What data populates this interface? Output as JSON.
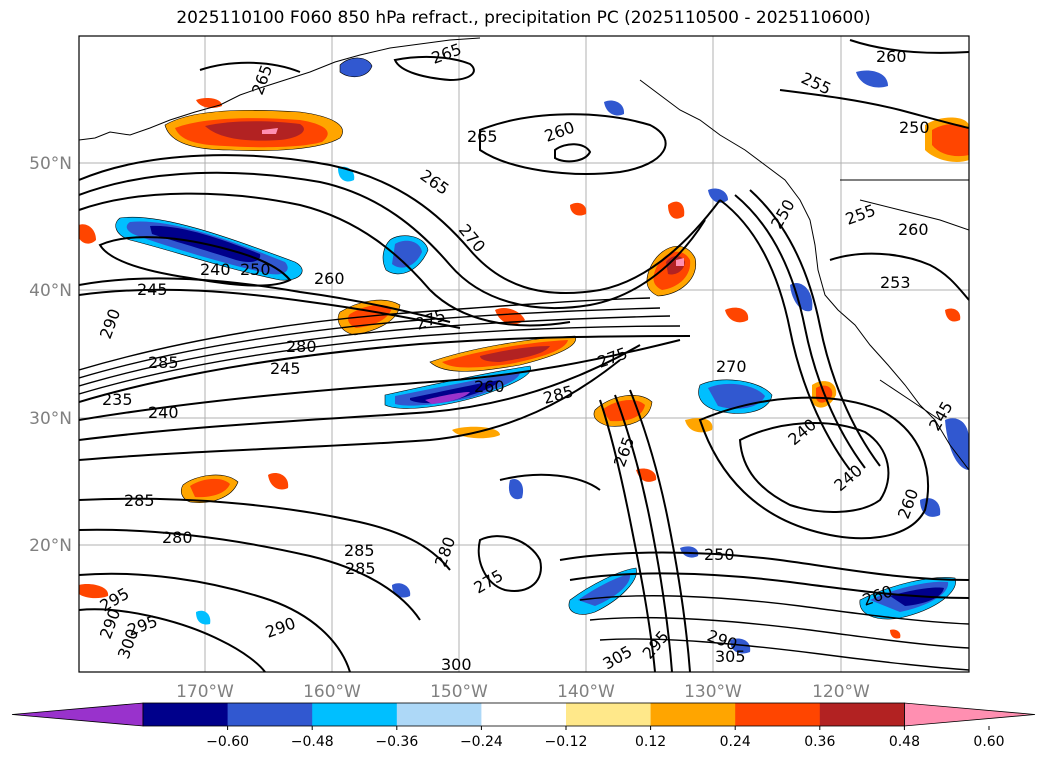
{
  "title": "2025110100 F060 850 hPa refract., precipitation PC (2025110500 - 2025110600)",
  "map": {
    "lat_labels": [
      "50°N",
      "40°N",
      "30°N",
      "20°N"
    ],
    "lon_labels": [
      "170°W",
      "160°W",
      "150°W",
      "140°W",
      "130°W",
      "120°W"
    ]
  },
  "contour_labels": [
    "265",
    "265",
    "265",
    "260",
    "260",
    "255",
    "250",
    "265",
    "270",
    "275",
    "275",
    "285",
    "290",
    "240",
    "245",
    "250",
    "260",
    "280",
    "260",
    "285",
    "240",
    "235",
    "245",
    "285",
    "280",
    "285",
    "285",
    "280",
    "275",
    "265",
    "270",
    "250",
    "240",
    "240",
    "255",
    "260",
    "250",
    "253",
    "260",
    "290",
    "295",
    "290",
    "295",
    "300",
    "300",
    "305",
    "295",
    "290",
    "305",
    "260",
    "245"
  ],
  "colorbar": {
    "ticks": [
      "−0.60",
      "−0.48",
      "−0.36",
      "−0.24",
      "−0.12",
      "0.12",
      "0.24",
      "0.36",
      "0.48",
      "0.60"
    ],
    "colors": [
      "#9932cc",
      "#00008b",
      "#3158d0",
      "#00bfff",
      "#add8f7",
      "#ffffff",
      "#ffe88a",
      "#ffa500",
      "#ff4500",
      "#b22222",
      "#ff8fb1"
    ]
  }
}
